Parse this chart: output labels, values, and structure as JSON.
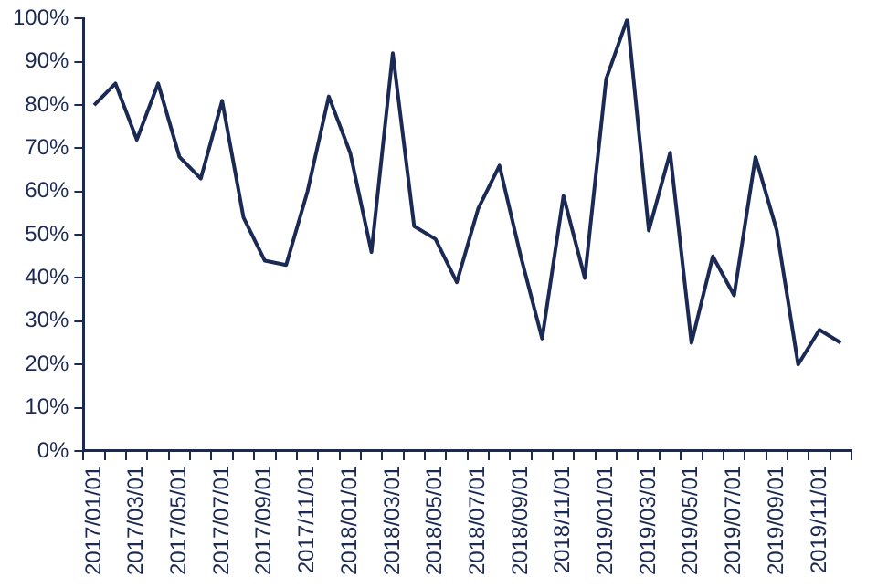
{
  "chart_data": {
    "type": "line",
    "categories": [
      "2017/01/01",
      null,
      "2017/03/01",
      null,
      "2017/05/01",
      null,
      "2017/07/01",
      null,
      "2017/09/01",
      null,
      "2017/11/01",
      null,
      "2018/01/01",
      null,
      "2018/03/01",
      null,
      "2018/05/01",
      null,
      "2018/07/01",
      null,
      "2018/09/01",
      null,
      "2018/11/01",
      null,
      "2019/01/01",
      null,
      "2019/03/01",
      null,
      "2019/05/01",
      null,
      "2019/07/01",
      null,
      "2019/09/01",
      null,
      "2019/11/01",
      null
    ],
    "series": [
      {
        "color": "#1b2a55",
        "values": [
          80,
          85,
          72,
          85,
          68,
          63,
          81,
          54,
          44,
          43,
          60,
          82,
          69,
          46,
          92,
          52,
          49,
          39,
          56,
          66,
          45,
          26,
          59,
          40,
          86,
          100,
          51,
          69,
          25,
          45,
          36,
          68,
          51,
          20,
          28,
          25
        ]
      }
    ],
    "ylim": [
      0,
      100
    ],
    "yticks": [
      {
        "value": 0,
        "label": "0%"
      },
      {
        "value": 10,
        "label": "10%"
      },
      {
        "value": 20,
        "label": "20%"
      },
      {
        "value": 30,
        "label": "30%"
      },
      {
        "value": 40,
        "label": "40%"
      },
      {
        "value": 50,
        "label": "50%"
      },
      {
        "value": 60,
        "label": "60%"
      },
      {
        "value": 70,
        "label": "70%"
      },
      {
        "value": 80,
        "label": "80%"
      },
      {
        "value": 90,
        "label": "90%"
      },
      {
        "value": 100,
        "label": "100%"
      }
    ],
    "grid": false,
    "legend": false,
    "marker": "none",
    "line_style": "solid"
  }
}
